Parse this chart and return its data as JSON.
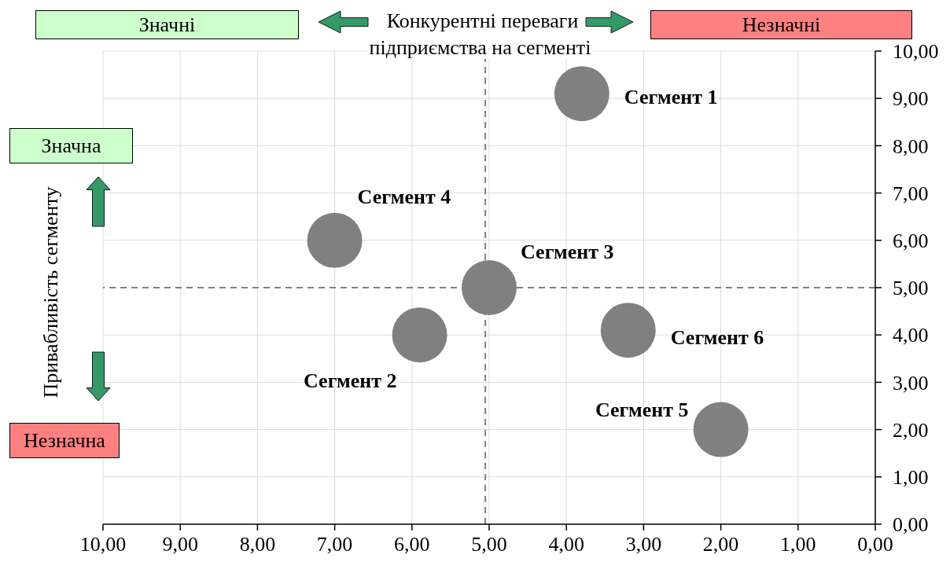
{
  "chart_data": {
    "type": "bubble",
    "xlabel": "Конкурентні переваги підприємства на сегменті",
    "ylabel": "Привабливість сегменту",
    "annotations": [
      "Значні",
      "Незначні",
      "Значна",
      "Незначна"
    ],
    "series": [
      {
        "name": "Сегмент 1",
        "color": "#808080",
        "x": [
          3.8
        ],
        "values": [
          9.1
        ],
        "sizes": [
          1
        ]
      },
      {
        "name": "Сегмент 2",
        "color": "#808080",
        "x": [
          5.9
        ],
        "values": [
          4.0
        ],
        "sizes": [
          1
        ]
      },
      {
        "name": "Сегмент 3",
        "color": "#808080",
        "x": [
          5.0
        ],
        "values": [
          5.0
        ],
        "sizes": [
          1
        ]
      },
      {
        "name": "Сегмент 4",
        "color": "#808080",
        "x": [
          7.0
        ],
        "values": [
          6.0
        ],
        "sizes": [
          1
        ]
      },
      {
        "name": "Сегмент 5",
        "color": "#808080",
        "x": [
          2.0
        ],
        "values": [
          2.0
        ],
        "sizes": [
          1
        ]
      },
      {
        "name": "Сегмент 6",
        "color": "#808080",
        "x": [
          3.2
        ],
        "values": [
          4.1
        ],
        "sizes": [
          1
        ]
      }
    ],
    "xlim": [
      10,
      0
    ],
    "xticks": [
      {
        "value": 10,
        "label": "10,00"
      },
      {
        "value": 9,
        "label": "9,00"
      },
      {
        "value": 8,
        "label": "8,00"
      },
      {
        "value": 7,
        "label": "7,00"
      },
      {
        "value": 6,
        "label": "6,00"
      },
      {
        "value": 5,
        "label": "5,00"
      },
      {
        "value": 4,
        "label": "4,00"
      },
      {
        "value": 3,
        "label": "3,00"
      },
      {
        "value": 2,
        "label": "2,00"
      },
      {
        "value": 1,
        "label": "1,00"
      },
      {
        "value": 0,
        "label": "0,00"
      }
    ],
    "ylim": [
      0,
      10
    ],
    "yticks": [
      {
        "value": 0,
        "label": "0,00"
      },
      {
        "value": 1,
        "label": "1,00"
      },
      {
        "value": 2,
        "label": "2,00"
      },
      {
        "value": 3,
        "label": "3,00"
      },
      {
        "value": 4,
        "label": "4,00"
      },
      {
        "value": 5,
        "label": "5,00"
      },
      {
        "value": 6,
        "label": "6,00"
      },
      {
        "value": 7,
        "label": "7,00"
      },
      {
        "value": 8,
        "label": "8,00"
      },
      {
        "value": 9,
        "label": "9,00"
      },
      {
        "value": 10,
        "label": "10,00"
      }
    ],
    "grid": true,
    "legend": false,
    "ref_lines": [
      {
        "axis": "x",
        "value": 5.05,
        "color": "#808080",
        "line_style": "dashed"
      },
      {
        "axis": "y",
        "value": 5,
        "color": "#808080",
        "line_style": "dashed"
      }
    ]
  }
}
